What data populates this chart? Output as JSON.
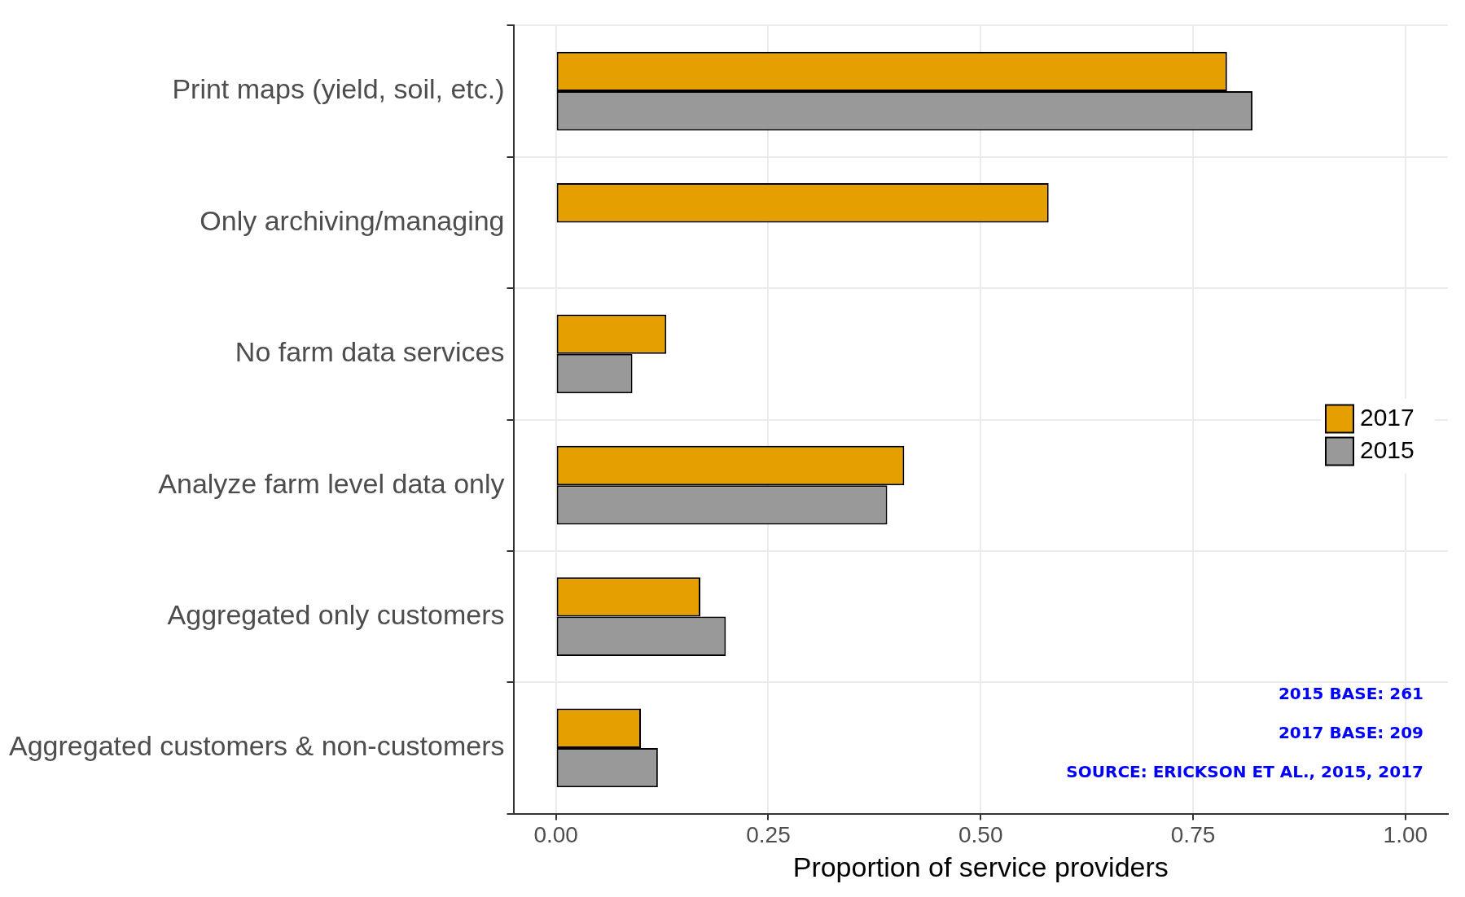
{
  "chart_data": {
    "type": "bar",
    "orientation": "horizontal",
    "xlabel": "Proportion of service providers",
    "categories": [
      "Print maps (yield, soil, etc.)",
      "Only archiving/managing",
      "No farm data services",
      "Analyze farm level data only",
      "Aggregated only customers",
      "Aggregated customers & non-customers"
    ],
    "series": [
      {
        "name": "2017",
        "color": "#e69f00",
        "values": [
          0.79,
          0.58,
          0.13,
          0.41,
          0.17,
          0.1
        ]
      },
      {
        "name": "2015",
        "color": "#999999",
        "values": [
          0.82,
          null,
          0.09,
          0.39,
          0.2,
          0.12
        ]
      }
    ],
    "xlim": [
      -0.05,
      1.05
    ],
    "xticks": [
      {
        "value": 0,
        "label": "0.00"
      },
      {
        "value": 0.25,
        "label": "0.25"
      },
      {
        "value": 0.5,
        "label": "0.50"
      },
      {
        "value": 0.75,
        "label": "0.75"
      },
      {
        "value": 1,
        "label": "1.00"
      }
    ],
    "grid": true,
    "legend": "right",
    "annotations": [
      "2015 BASE: 261",
      "2017 BASE: 209",
      "SOURCE: ERICKSON ET AL., 2015, 2017"
    ]
  }
}
